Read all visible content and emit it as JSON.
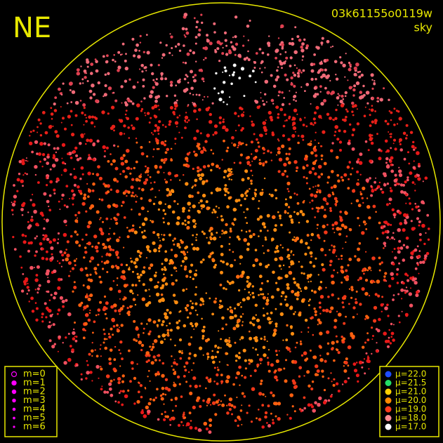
{
  "title": "NE",
  "image_id": "03k61155o0119w",
  "view": "sky",
  "magnitude_legend": {
    "color": "#ff00ff",
    "items": [
      "m=0",
      "m=1",
      "m=2",
      "m=3",
      "m=4",
      "m=5",
      "m=6"
    ]
  },
  "brightness_legend": [
    {
      "label": "μ=22.0",
      "color": "#1e4cff"
    },
    {
      "label": "μ=21.5",
      "color": "#22dd66"
    },
    {
      "label": "μ=21.0",
      "color": "#ffd000"
    },
    {
      "label": "μ=20.0",
      "color": "#ff8a00"
    },
    {
      "label": "μ=19.0",
      "color": "#ff3a1a"
    },
    {
      "label": "μ=18.0",
      "color": "#ff8a90"
    },
    {
      "label": "μ=17.0",
      "color": "#ffffff"
    }
  ]
}
